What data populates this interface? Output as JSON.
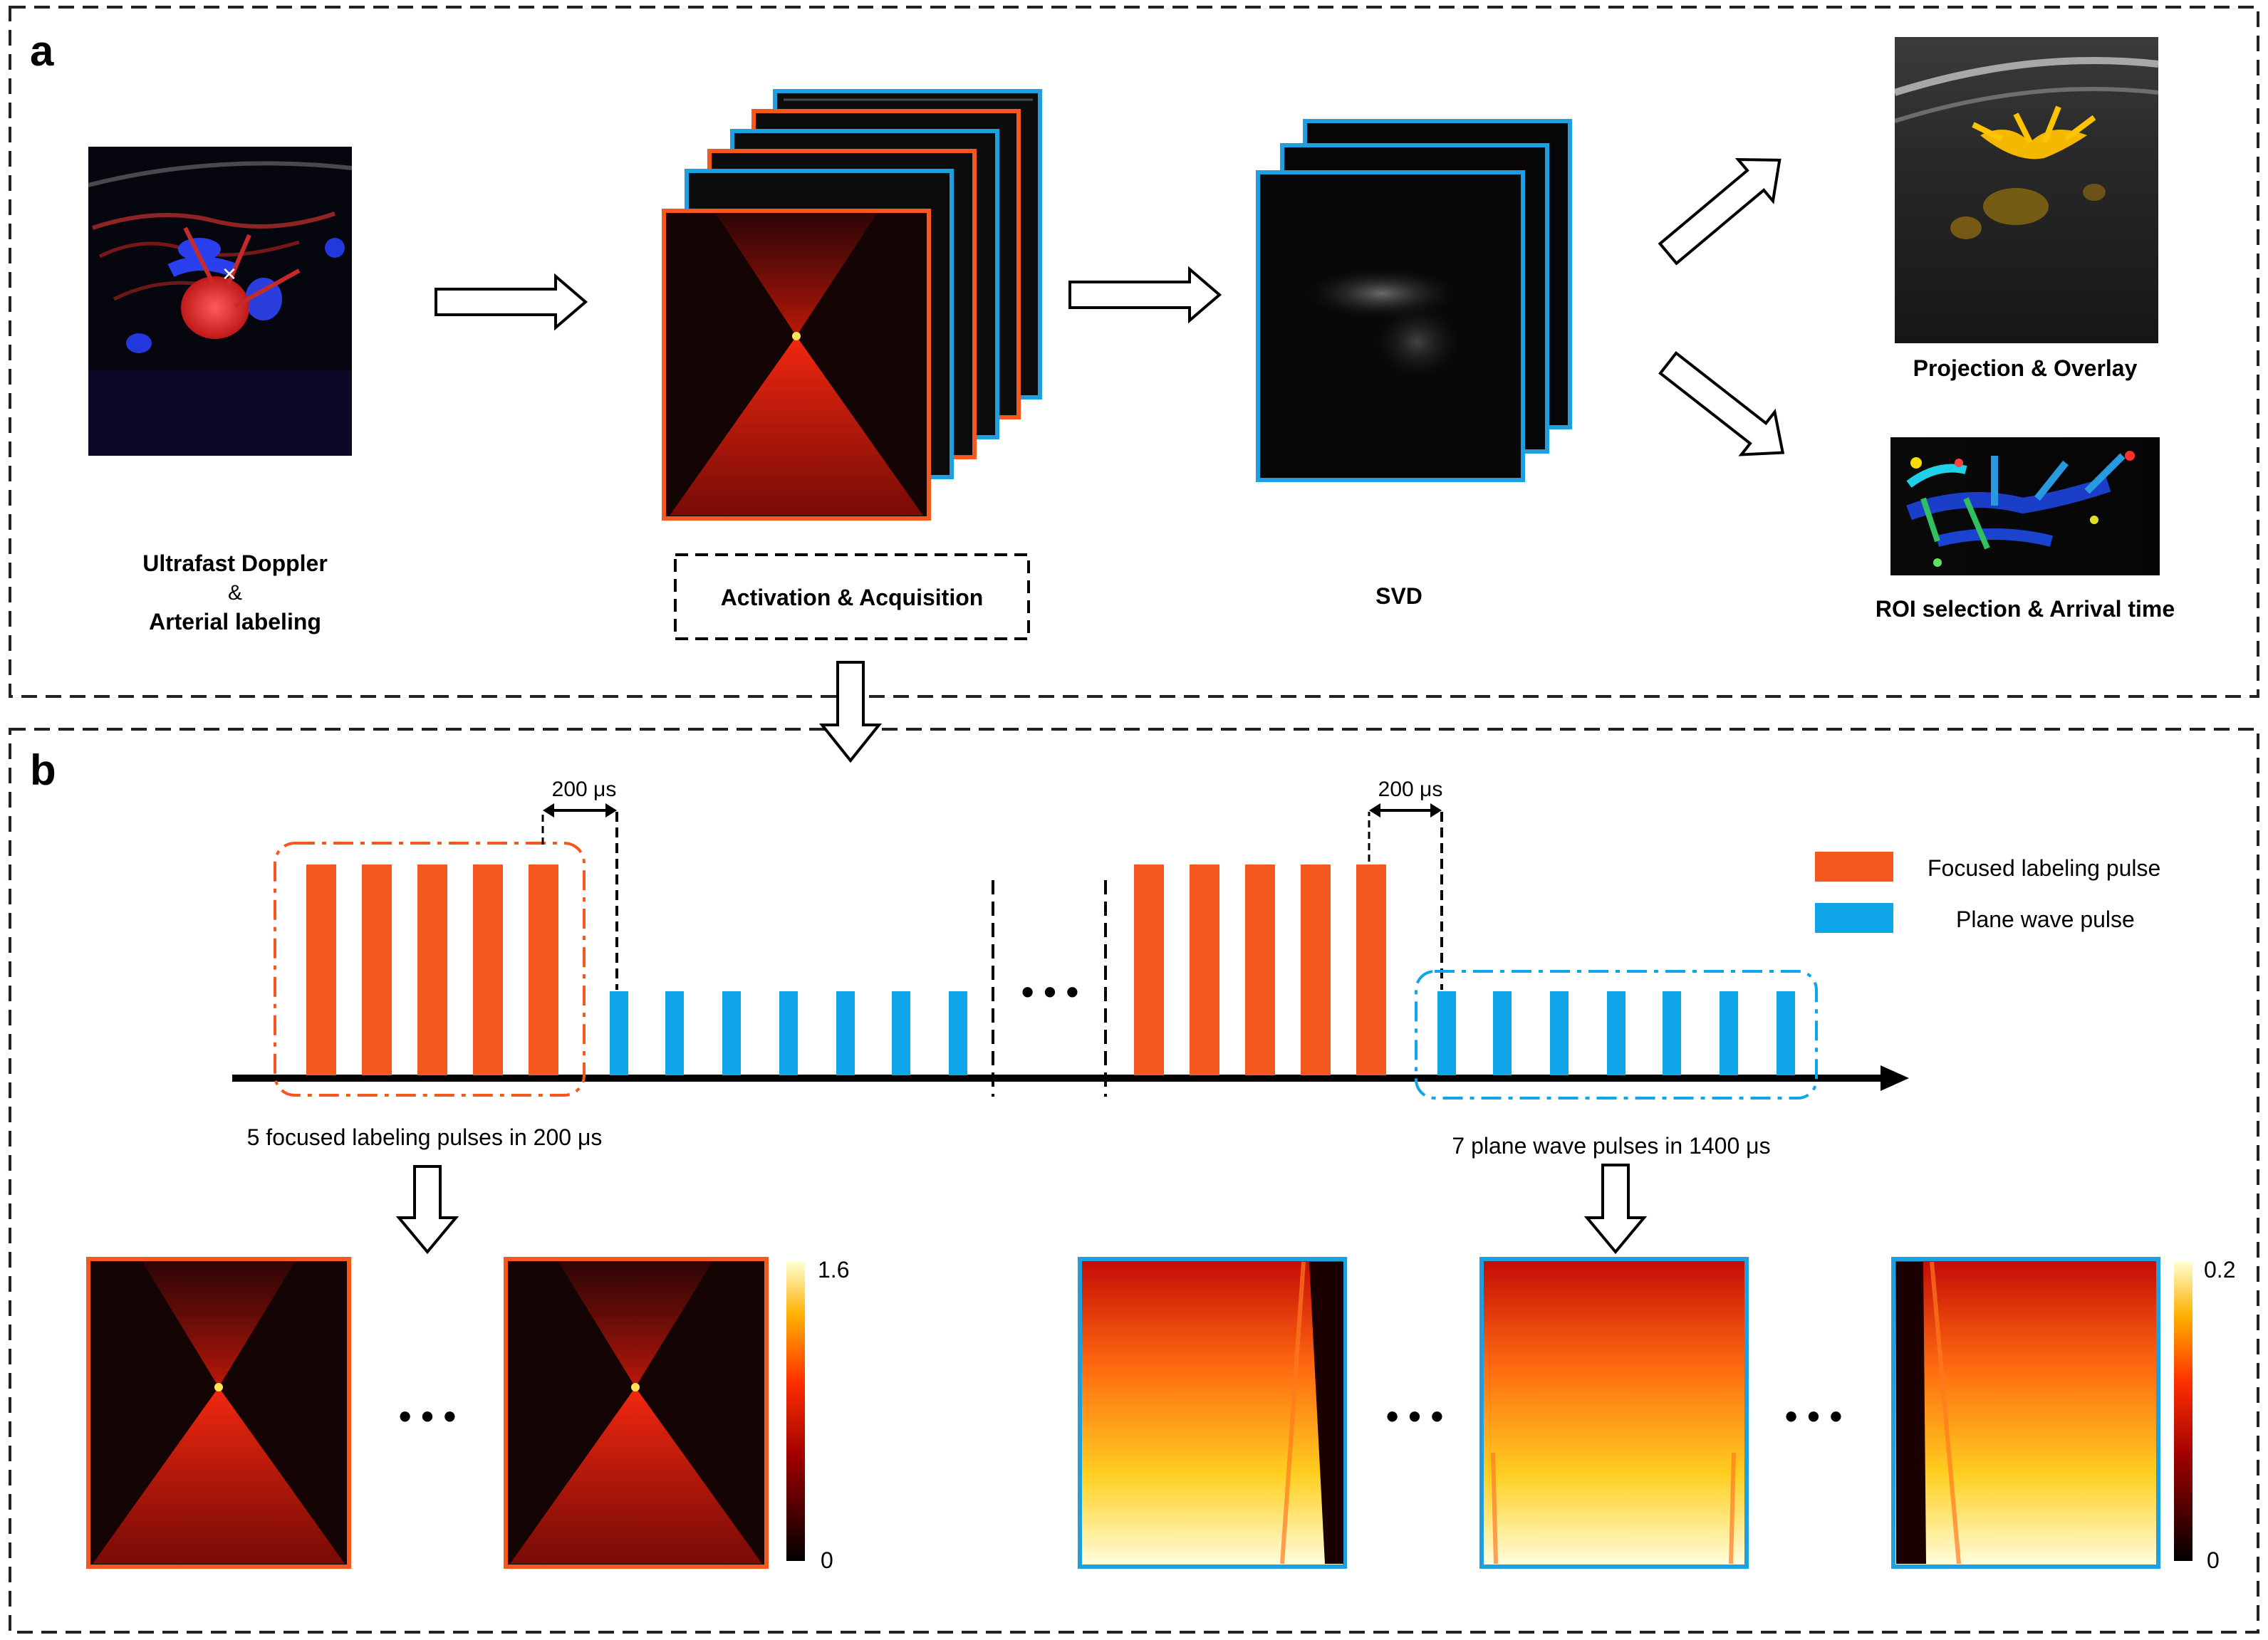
{
  "panel_a": {
    "letter": "a",
    "doppler_caption": [
      "Ultrafast Doppler",
      "&",
      "Arterial labeling"
    ],
    "activation_caption": "Activation & Acquisition",
    "svd_caption": "SVD",
    "projection_caption": "Projection & Overlay",
    "roi_caption": "ROI selection & Arrival time"
  },
  "panel_b": {
    "letter": "b",
    "interval_label_1": "200 μs",
    "interval_label_2": "200 μs",
    "focused_group_caption": "5 focused labeling pulses in 200 μs",
    "plane_group_caption": "7 plane wave pulses in 1400 μs",
    "legend": [
      {
        "label": "Focused labeling pulse",
        "color": "#F4581F"
      },
      {
        "label": "Plane wave pulse",
        "color": "#0EA5E9"
      }
    ],
    "colorbar_focused": {
      "max": "1.6",
      "min": "0"
    },
    "colorbar_plane": {
      "max": "0.2",
      "min": "0"
    },
    "ellipsis": "• • •"
  },
  "colors": {
    "focused": "#F4581F",
    "plane": "#0EA5E9",
    "frame_dark": "#0a0a0a"
  }
}
